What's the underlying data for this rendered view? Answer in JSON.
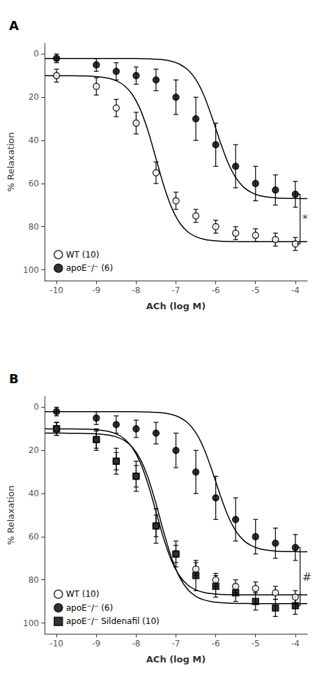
{
  "chart_data": [
    {
      "type": "scatter",
      "title": "A",
      "xlabel": "ACh (log M)",
      "ylabel": "% Relaxation",
      "xlim": [
        -10.3,
        -3.7
      ],
      "ylim": [
        105,
        -5
      ],
      "xticks": [
        -10,
        -9,
        -8,
        -7,
        -6,
        -5,
        -4
      ],
      "yticks": [
        0,
        20,
        40,
        60,
        80,
        100
      ],
      "grid": false,
      "legend": "lower left",
      "series": [
        {
          "name": "WT (10)",
          "type": "scatter",
          "marker": "circle-open",
          "color": "#000000",
          "x": [
            -10,
            -9,
            -8.5,
            -8,
            -7.5,
            -7,
            -6.5,
            -6,
            -5.5,
            -5,
            -4.5,
            -4
          ],
          "values": [
            10,
            15,
            25,
            32,
            55,
            68,
            75,
            80,
            83,
            84,
            86,
            88
          ],
          "yerr": [
            3,
            4,
            4,
            5,
            5,
            4,
            3,
            3,
            3,
            3,
            3,
            3
          ]
        },
        {
          "type": "line",
          "color": "#000000",
          "x": [
            -10.3,
            -10.1,
            -9.9,
            -9.7,
            -9.5,
            -9.3,
            -9.1,
            -8.9,
            -8.7,
            -8.5,
            -8.3,
            -8.1,
            -7.9,
            -7.7,
            -7.5,
            -7.3,
            -7.1,
            -6.9,
            -6.7,
            -6.5,
            -6.3,
            -6.1,
            -5.9,
            -5.7,
            -5.5,
            -5.3,
            -5.1,
            -4.9,
            -4.7,
            -4.5,
            -4.3,
            -4.1,
            -3.9,
            -3.7
          ],
          "values": [
            10.0,
            10.01,
            10.02,
            10.04,
            10.08,
            10.15,
            10.31,
            10.61,
            11.2,
            12.36,
            14.57,
            18.61,
            25.46,
            35.71,
            48.5,
            61.29,
            71.54,
            78.39,
            82.43,
            84.64,
            85.8,
            86.39,
            86.69,
            86.85,
            86.92,
            86.96,
            86.98,
            86.99,
            87.0,
            87.0,
            87.0,
            87.0,
            87.0,
            87.0
          ]
        },
        {
          "name": "apoE⁻/⁻ (6)",
          "type": "scatter",
          "marker": "circle",
          "color": "#000000",
          "x": [
            -10,
            -9,
            -8.5,
            -8,
            -7.5,
            -7,
            -6.5,
            -6,
            -5.5,
            -5,
            -4.5,
            -4
          ],
          "values": [
            2,
            5,
            8,
            10,
            12,
            20,
            30,
            42,
            52,
            60,
            63,
            65
          ],
          "yerr": [
            2,
            3,
            4,
            4,
            5,
            8,
            10,
            10,
            10,
            8,
            7,
            6
          ]
        },
        {
          "type": "line",
          "color": "#000000",
          "x": [
            -10.3,
            -10.1,
            -9.9,
            -9.7,
            -9.5,
            -9.3,
            -9.1,
            -8.9,
            -8.7,
            -8.5,
            -8.3,
            -8.1,
            -7.9,
            -7.7,
            -7.5,
            -7.3,
            -7.1,
            -6.9,
            -6.7,
            -6.5,
            -6.3,
            -6.1,
            -5.9,
            -5.7,
            -5.5,
            -5.3,
            -5.1,
            -4.9,
            -4.7,
            -4.5,
            -4.3,
            -4.1,
            -3.9,
            -3.7
          ],
          "values": [
            2.0,
            2.0,
            2.0,
            2.0,
            2.0,
            2.0,
            2.0,
            2.0,
            2.01,
            2.01,
            2.02,
            2.05,
            2.09,
            2.18,
            2.36,
            2.72,
            3.42,
            4.78,
            7.32,
            11.81,
            19.02,
            28.94,
            40.06,
            49.98,
            57.19,
            61.68,
            64.22,
            65.58,
            66.28,
            66.64,
            66.82,
            66.91,
            66.95,
            66.98
          ]
        }
      ],
      "annotations": [
        {
          "text": "*",
          "x": -3.88,
          "tick_width": 0.08,
          "y_top": 65,
          "y_bottom": 88
        }
      ]
    },
    {
      "type": "scatter",
      "title": "B",
      "xlabel": "ACh (log M)",
      "ylabel": "% Relaxation",
      "xlim": [
        -10.3,
        -3.7
      ],
      "ylim": [
        105,
        -5
      ],
      "xticks": [
        -10,
        -9,
        -8,
        -7,
        -6,
        -5,
        -4
      ],
      "yticks": [
        0,
        20,
        40,
        60,
        80,
        100
      ],
      "grid": false,
      "legend": "lower left",
      "series": [
        {
          "name": "WT (10)",
          "type": "scatter",
          "marker": "circle-open",
          "color": "#000000",
          "x": [
            -10,
            -9,
            -8.5,
            -8,
            -7.5,
            -7,
            -6.5,
            -6,
            -5.5,
            -5,
            -4.5,
            -4
          ],
          "values": [
            10,
            15,
            25,
            32,
            55,
            68,
            75,
            80,
            83,
            84,
            86,
            88
          ],
          "yerr": [
            3,
            4,
            4,
            5,
            5,
            4,
            3,
            3,
            3,
            3,
            3,
            3
          ]
        },
        {
          "type": "line",
          "color": "#000000",
          "x": [
            -10.3,
            -10.1,
            -9.9,
            -9.7,
            -9.5,
            -9.3,
            -9.1,
            -8.9,
            -8.7,
            -8.5,
            -8.3,
            -8.1,
            -7.9,
            -7.7,
            -7.5,
            -7.3,
            -7.1,
            -6.9,
            -6.7,
            -6.5,
            -6.3,
            -6.1,
            -5.9,
            -5.7,
            -5.5,
            -5.3,
            -5.1,
            -4.9,
            -4.7,
            -4.5,
            -4.3,
            -4.1,
            -3.9,
            -3.7
          ],
          "values": [
            10.0,
            10.01,
            10.02,
            10.04,
            10.08,
            10.15,
            10.31,
            10.61,
            11.2,
            12.36,
            14.57,
            18.61,
            25.46,
            35.71,
            48.5,
            61.29,
            71.54,
            78.39,
            82.43,
            84.64,
            85.8,
            86.39,
            86.69,
            86.85,
            86.92,
            86.96,
            86.98,
            86.99,
            87.0,
            87.0,
            87.0,
            87.0,
            87.0,
            87.0
          ]
        },
        {
          "name": "apoE⁻/⁻ (6)",
          "type": "scatter",
          "marker": "circle",
          "color": "#000000",
          "x": [
            -10,
            -9,
            -8.5,
            -8,
            -7.5,
            -7,
            -6.5,
            -6,
            -5.5,
            -5,
            -4.5,
            -4
          ],
          "values": [
            2,
            5,
            8,
            10,
            12,
            20,
            30,
            42,
            52,
            60,
            63,
            65
          ],
          "yerr": [
            2,
            3,
            4,
            4,
            5,
            8,
            10,
            10,
            10,
            8,
            7,
            6
          ]
        },
        {
          "type": "line",
          "color": "#000000",
          "x": [
            -10.3,
            -10.1,
            -9.9,
            -9.7,
            -9.5,
            -9.3,
            -9.1,
            -8.9,
            -8.7,
            -8.5,
            -8.3,
            -8.1,
            -7.9,
            -7.7,
            -7.5,
            -7.3,
            -7.1,
            -6.9,
            -6.7,
            -6.5,
            -6.3,
            -6.1,
            -5.9,
            -5.7,
            -5.5,
            -5.3,
            -5.1,
            -4.9,
            -4.7,
            -4.5,
            -4.3,
            -4.1,
            -3.9,
            -3.7
          ],
          "values": [
            2.0,
            2.0,
            2.0,
            2.0,
            2.0,
            2.0,
            2.0,
            2.0,
            2.01,
            2.01,
            2.02,
            2.05,
            2.09,
            2.18,
            2.36,
            2.72,
            3.42,
            4.78,
            7.32,
            11.81,
            19.02,
            28.94,
            40.06,
            49.98,
            57.19,
            61.68,
            64.22,
            65.58,
            66.28,
            66.64,
            66.82,
            66.91,
            66.95,
            66.98
          ]
        },
        {
          "name": "apoE⁻/⁻ Sildenafil (10)",
          "type": "scatter",
          "marker": "square",
          "color": "#000000",
          "x": [
            -10,
            -9,
            -8.5,
            -8,
            -7.5,
            -7,
            -6.5,
            -6,
            -5.5,
            -5,
            -4.5,
            -4
          ],
          "values": [
            10,
            15,
            25,
            32,
            55,
            68,
            78,
            83,
            86,
            90,
            93,
            92
          ],
          "yerr": [
            3,
            5,
            6,
            7,
            8,
            6,
            7,
            5,
            4,
            4,
            4,
            4
          ]
        },
        {
          "type": "line",
          "color": "#000000",
          "x": [
            -10.3,
            -10.1,
            -9.9,
            -9.7,
            -9.5,
            -9.3,
            -9.1,
            -8.9,
            -8.7,
            -8.5,
            -8.3,
            -8.1,
            -7.9,
            -7.7,
            -7.5,
            -7.3,
            -7.1,
            -6.9,
            -6.7,
            -6.5,
            -6.3,
            -6.1,
            -5.9,
            -5.7,
            -5.5,
            -5.3,
            -5.1,
            -4.9,
            -4.7,
            -4.5,
            -4.3,
            -4.1,
            -3.9,
            -3.7
          ],
          "values": [
            12.0,
            12.01,
            12.01,
            12.03,
            12.06,
            12.11,
            12.22,
            12.44,
            12.88,
            13.73,
            15.38,
            18.46,
            23.93,
            32.69,
            44.75,
            58.25,
            70.31,
            79.07,
            84.54,
            87.62,
            89.27,
            90.12,
            90.56,
            90.78,
            90.89,
            90.94,
            90.97,
            90.99,
            90.99,
            91.0,
            91.0,
            91.0,
            91.0,
            91.0
          ]
        }
      ],
      "annotations": [
        {
          "text": "#",
          "x": -3.88,
          "tick_width": 0.08,
          "y_top": 65,
          "y_bottom": 92
        }
      ]
    }
  ]
}
